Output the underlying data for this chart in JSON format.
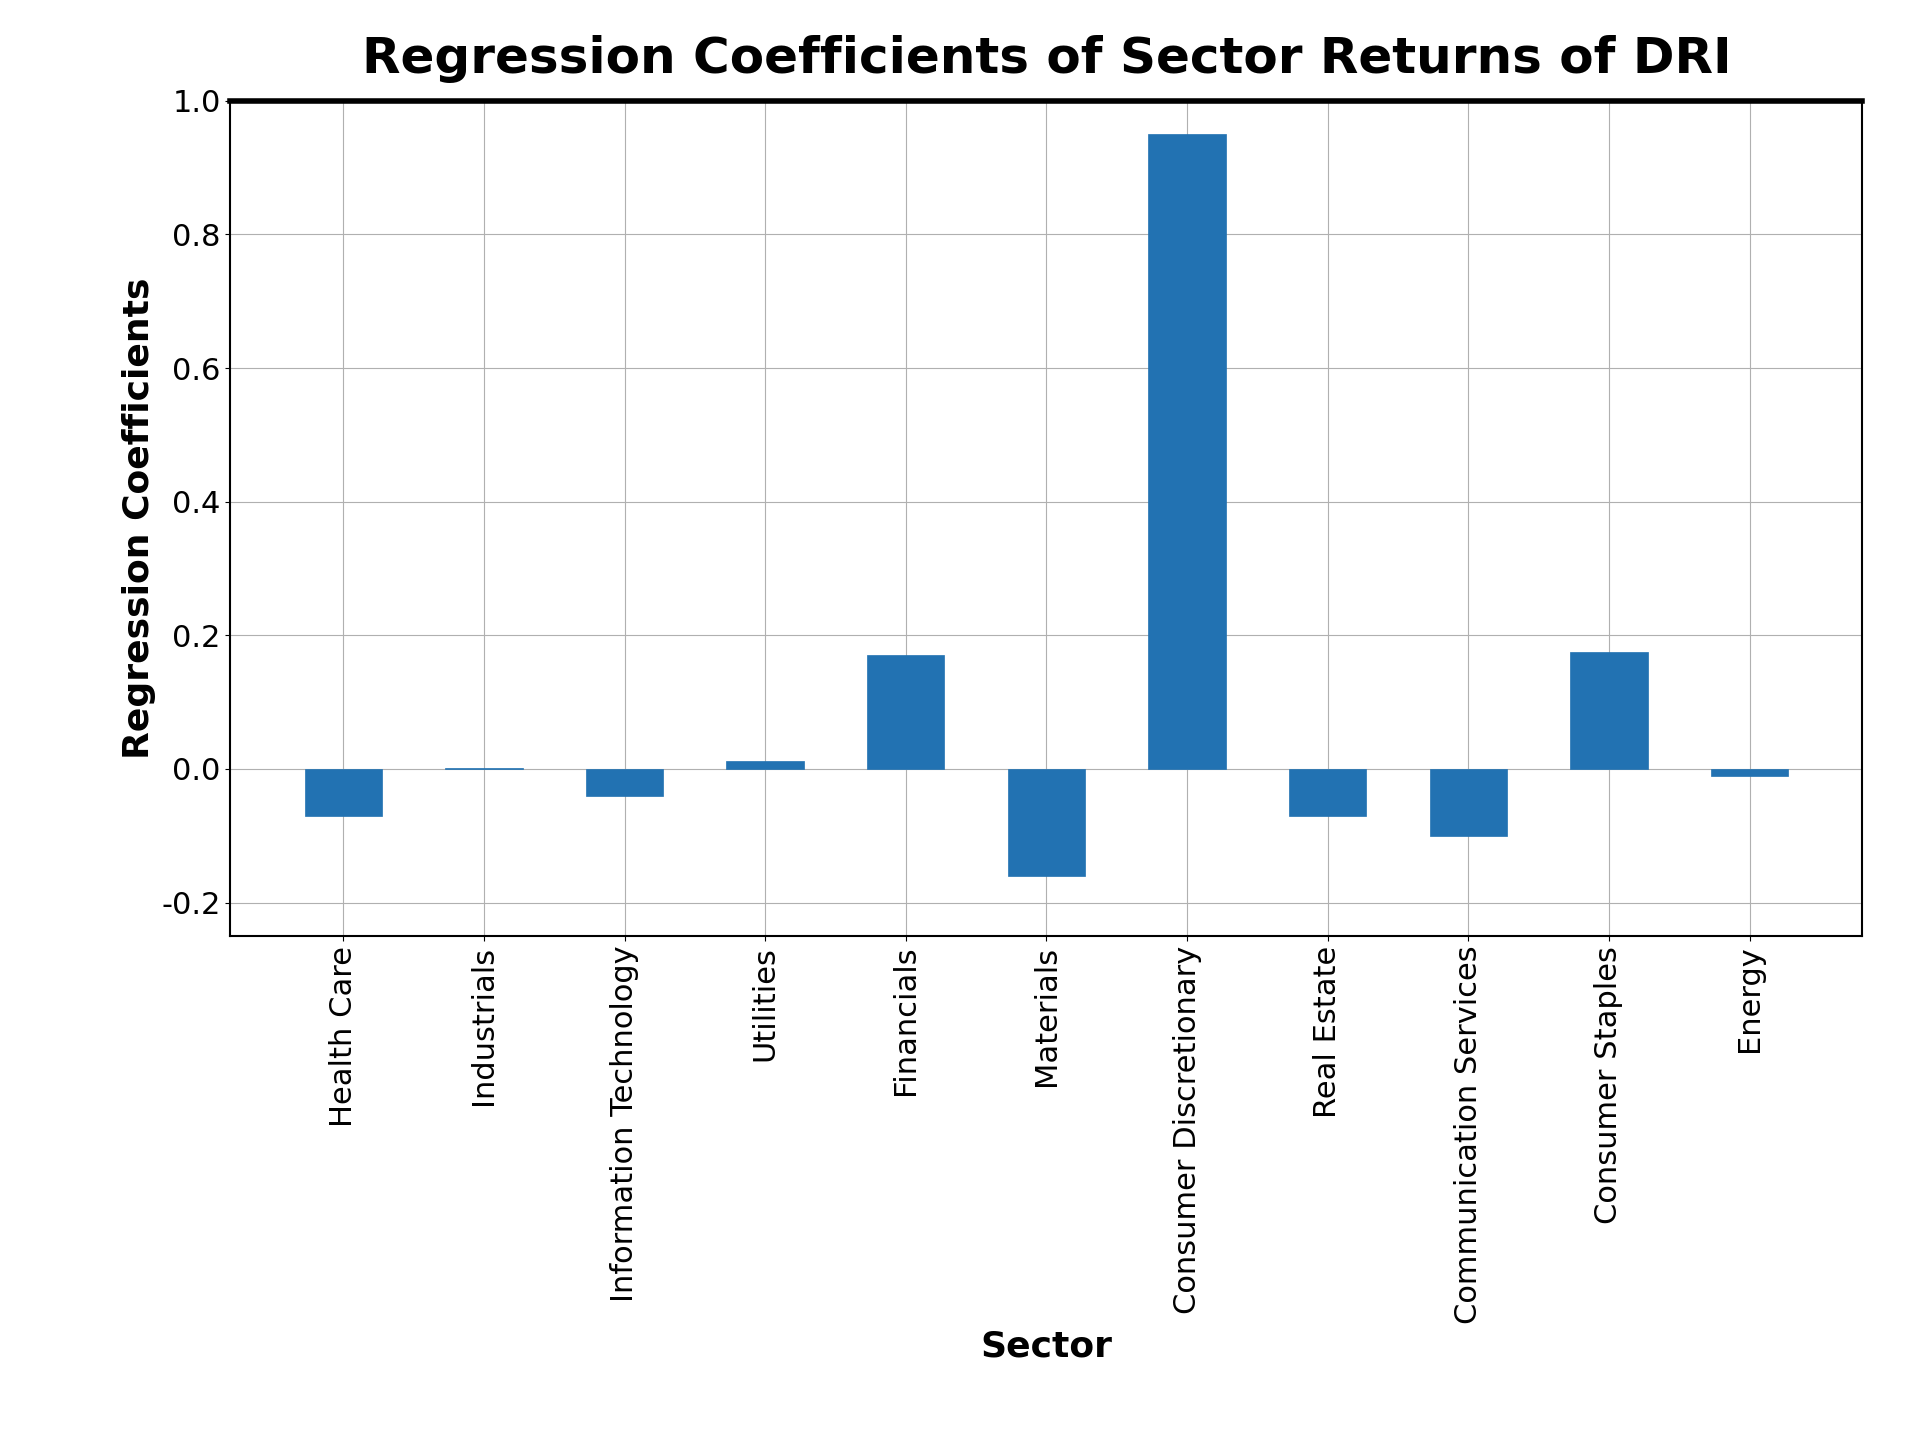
{
  "title": "Regression Coefficients of Sector Returns of DRI",
  "xlabel": "Sector",
  "ylabel": "Regression Coefficients",
  "categories": [
    "Health Care",
    "Industrials",
    "Information Technology",
    "Utilities",
    "Financials",
    "Materials",
    "Consumer Discretionary",
    "Real Estate",
    "Communication Services",
    "Consumer Staples",
    "Energy"
  ],
  "values": [
    -0.07,
    0.002,
    -0.04,
    0.012,
    0.17,
    -0.16,
    0.95,
    -0.07,
    -0.1,
    0.175,
    -0.01
  ],
  "bar_color": "#2272b2",
  "ylim": [
    -0.25,
    1.0
  ],
  "yticks": [
    -0.2,
    0.0,
    0.2,
    0.4,
    0.6,
    0.8,
    1.0
  ],
  "background_color": "#ffffff",
  "grid_color": "#b0b0b0",
  "title_fontsize": 36,
  "label_fontsize": 26,
  "tick_fontsize": 22,
  "bar_width": 0.55
}
